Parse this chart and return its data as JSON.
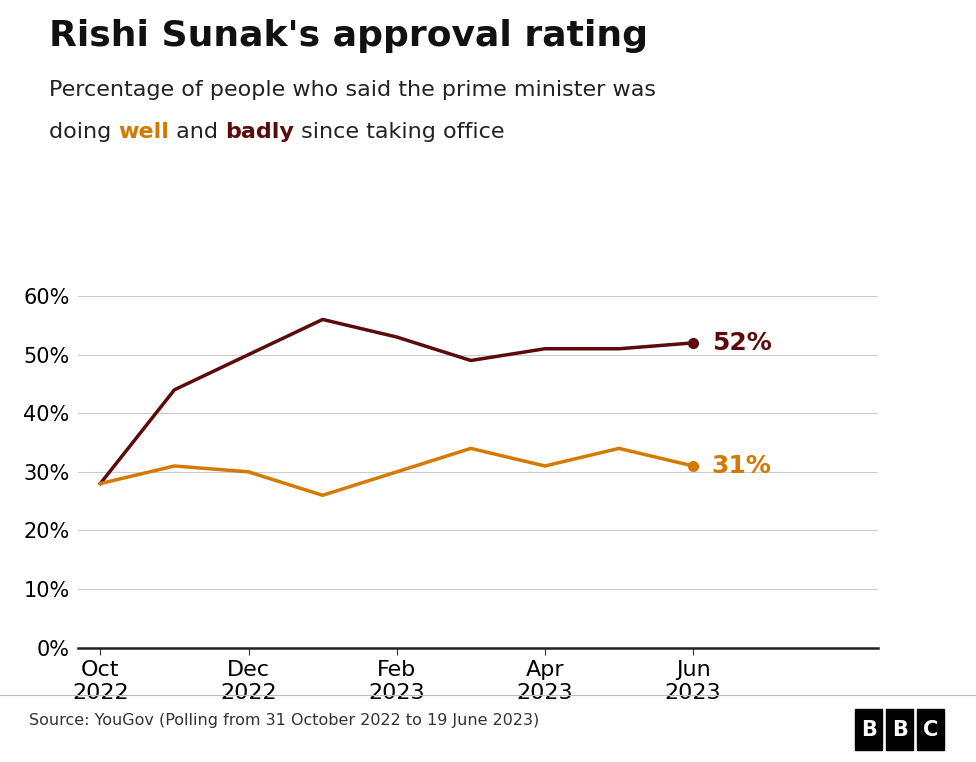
{
  "title": "Rishi Sunak's approval rating",
  "well_color": "#d47a00",
  "badly_color": "#5c0a0a",
  "well_label": "31%",
  "badly_label": "52%",
  "source": "Source: YouGov (Polling from 31 October 2022 to 19 June 2023)",
  "background_color": "#ffffff",
  "grid_color": "#cccccc",
  "ylim": [
    0,
    65
  ],
  "yticks": [
    0,
    10,
    20,
    30,
    40,
    50,
    60
  ],
  "xtick_positions": [
    0,
    2,
    4,
    6,
    8
  ],
  "xtick_labels": [
    "Oct\n2022",
    "Dec\n2022",
    "Feb\n2023",
    "Apr\n2023",
    "Jun\n2023"
  ],
  "badly_x": [
    0,
    1,
    2,
    3,
    4,
    5,
    6,
    7,
    8
  ],
  "badly_y": [
    28,
    44,
    50,
    56,
    53,
    49,
    51,
    51,
    52
  ],
  "well_x": [
    0,
    1,
    2,
    3,
    4,
    5,
    6,
    7,
    8
  ],
  "well_y": [
    28,
    31,
    30,
    26,
    30,
    34,
    31,
    34,
    31
  ],
  "line_width": 2.5,
  "marker_size": 7,
  "subtitle_line1": "Percentage of people who said the prime minister was",
  "subtitle_line2_parts": [
    [
      "doing ",
      "#222222",
      false
    ],
    [
      "well",
      "#d47a00",
      true
    ],
    [
      " and ",
      "#222222",
      false
    ],
    [
      "badly",
      "#5c0a0a",
      true
    ],
    [
      " since taking office",
      "#222222",
      false
    ]
  ]
}
